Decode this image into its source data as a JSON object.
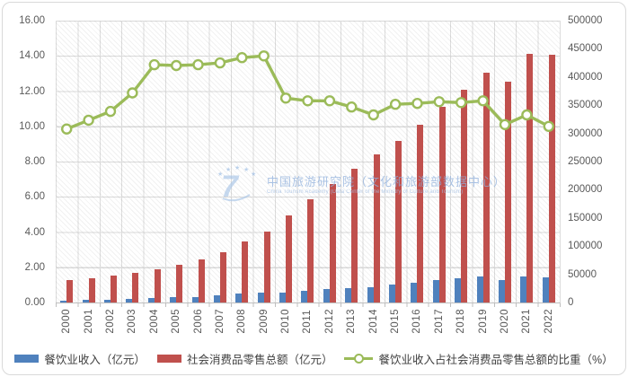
{
  "chart_data": {
    "type": "bar",
    "subtype": "combo-bar-line-dual-axis",
    "title": "",
    "categories": [
      "2000",
      "2001",
      "2002",
      "2003",
      "2004",
      "2005",
      "2006",
      "2007",
      "2008",
      "2009",
      "2010",
      "2011",
      "2012",
      "2013",
      "2014",
      "2015",
      "2016",
      "2017",
      "2018",
      "2019",
      "2020",
      "2021",
      "2022"
    ],
    "series": [
      {
        "name": "餐饮业收入（亿元）",
        "kind": "bar",
        "axis": "right",
        "color": "#4F81BD",
        "values": [
          3753,
          4369,
          5092,
          6066,
          7486,
          8887,
          10345,
          12352,
          15404,
          17998,
          17648,
          20543,
          23448,
          25569,
          27860,
          32310,
          35799,
          39644,
          42716,
          46721,
          39527,
          46895,
          43941
        ]
      },
      {
        "name": "社会消费品零售总额（亿元）",
        "kind": "bar",
        "axis": "right",
        "color": "#C0504D",
        "values": [
          39106,
          43055,
          48136,
          52516,
          59501,
          67177,
          76410,
          89210,
          108488,
          125343,
          154554,
          183919,
          210307,
          237810,
          262394,
          286588,
          315806,
          347327,
          377783,
          408017,
          391981,
          440823,
          439733
        ]
      },
      {
        "name": "餐饮业收入占社会消费品零售总额的比重（%）",
        "kind": "line",
        "axis": "left",
        "color": "#9BBB59",
        "marker_fill": "#ffffff",
        "values": [
          9.85,
          10.35,
          10.85,
          11.9,
          13.5,
          13.45,
          13.5,
          13.6,
          13.9,
          14.0,
          11.6,
          11.45,
          11.45,
          11.1,
          10.65,
          11.25,
          11.3,
          11.4,
          11.35,
          11.45,
          10.1,
          10.65,
          10.0
        ]
      }
    ],
    "left_axis": {
      "min": 0,
      "max": 16,
      "step": 2,
      "labels": [
        "16.00",
        "14.00",
        "12.00",
        "10.00",
        "8.00",
        "6.00",
        "4.00",
        "2.00",
        "0.00"
      ]
    },
    "right_axis": {
      "min": 0,
      "max": 500000,
      "step": 50000,
      "labels": [
        "500000",
        "450000",
        "400000",
        "350000",
        "300000",
        "250000",
        "200000",
        "150000",
        "100000",
        "50000",
        "0"
      ]
    },
    "grid": true,
    "legend_position": "bottom",
    "plot_background": "diagonal-hatch"
  },
  "watermark": {
    "cn": "中国旅游研究院（文化和旅游部数据中心）",
    "en": "China Tourism Academy (Data Center of the Ministry of Culture and Tourism)"
  },
  "colors": {
    "bar_blue": "#4F81BD",
    "bar_red": "#C0504D",
    "line_green": "#9BBB59",
    "gridline": "#d9d9d9",
    "axis_text": "#595959",
    "legend_text": "#3f3f3f",
    "watermark_blue": "#8fb0dd"
  }
}
